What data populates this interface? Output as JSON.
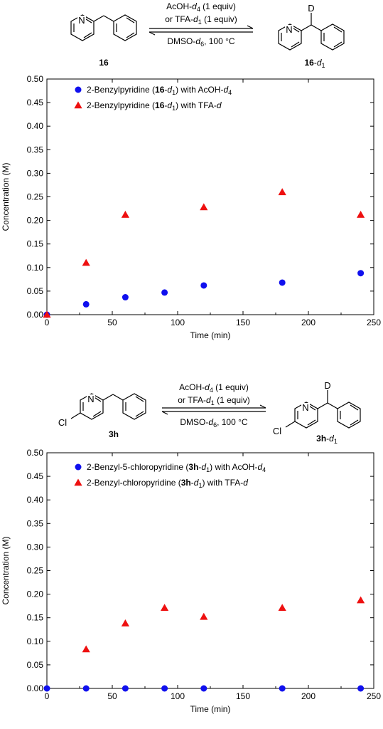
{
  "scheme_top": {
    "start_label": "16",
    "product_label": [
      "16",
      "-",
      "d",
      "1"
    ],
    "product_atom": "D",
    "reagent_line1": [
      "AcOH-",
      "d",
      "4",
      " (1 equiv)"
    ],
    "reagent_line2": [
      "or TFA-",
      "d",
      "1",
      " (1 equiv)"
    ],
    "conditions": [
      "DMSO-",
      "d",
      "6",
      ", 100 °C"
    ],
    "ring_atom": "N"
  },
  "scheme_bottom": {
    "start_label": "3h",
    "product_label": [
      "3h",
      "-",
      "d",
      "1"
    ],
    "product_atom": "D",
    "ring_atom": "N",
    "substituent": "Cl",
    "reagent_line1": [
      "AcOH-",
      "d",
      "4",
      " (1 equiv)"
    ],
    "reagent_line2": [
      "or TFA-",
      "d",
      "1",
      " (1 equiv)"
    ],
    "conditions": [
      "DMSO-",
      "d",
      "6",
      ", 100 °C"
    ]
  },
  "chart_data": [
    {
      "type": "scatter",
      "xlabel": "Time (min)",
      "ylabel": "Concentration (M)",
      "xlim": [
        0,
        250
      ],
      "ylim": [
        0,
        0.5
      ],
      "x_ticks": [
        "0",
        "50",
        "100",
        "150",
        "200",
        "250"
      ],
      "y_ticks": [
        "0.00",
        "0.05",
        "0.10",
        "0.15",
        "0.20",
        "0.25",
        "0.30",
        "0.35",
        "0.40",
        "0.45",
        "0.50"
      ],
      "legend_position": "top-left",
      "grid": false,
      "series": [
        {
          "legend": [
            "2-Benzylpyridine (",
            "16",
            "-",
            "d",
            "1",
            ") with AcOH-",
            "d",
            "4"
          ],
          "marker": "circle",
          "color": "#1010ee",
          "points": [
            [
              0,
              0.0
            ],
            [
              30,
              0.022
            ],
            [
              60,
              0.037
            ],
            [
              90,
              0.047
            ],
            [
              120,
              0.062
            ],
            [
              180,
              0.068
            ],
            [
              240,
              0.088
            ]
          ]
        },
        {
          "legend": [
            "2-Benzylpyridine (",
            "16",
            "-",
            "d",
            "1",
            ") with TFA-",
            "d"
          ],
          "marker": "triangle",
          "color": "#ee1010",
          "points": [
            [
              0,
              0.0
            ],
            [
              30,
              0.11
            ],
            [
              60,
              0.212
            ],
            [
              120,
              0.228
            ],
            [
              180,
              0.26
            ],
            [
              240,
              0.212
            ]
          ]
        }
      ]
    },
    {
      "type": "scatter",
      "xlabel": "Time (min)",
      "ylabel": "Concentration (M)",
      "xlim": [
        0,
        250
      ],
      "ylim": [
        0,
        0.5
      ],
      "x_ticks": [
        "0",
        "50",
        "100",
        "150",
        "200",
        "250"
      ],
      "y_ticks": [
        "0.00",
        "0.05",
        "0.10",
        "0.15",
        "0.20",
        "0.25",
        "0.30",
        "0.35",
        "0.40",
        "0.45",
        "0.50"
      ],
      "legend_position": "top-left",
      "grid": false,
      "series": [
        {
          "legend": [
            "2-Benzyl-5-chloropyridine (",
            "3h",
            "-",
            "d",
            "1",
            ") with AcOH-",
            "d",
            "4"
          ],
          "marker": "circle",
          "color": "#1010ee",
          "points": [
            [
              0,
              0.0
            ],
            [
              30,
              0.0
            ],
            [
              60,
              0.0
            ],
            [
              90,
              0.0
            ],
            [
              120,
              0.0
            ],
            [
              180,
              0.0
            ],
            [
              240,
              0.0
            ]
          ]
        },
        {
          "legend": [
            "2-Benzyl-chloropyridine (",
            "3h",
            "-",
            "d",
            "1",
            ") with TFA-",
            "d"
          ],
          "marker": "triangle",
          "color": "#ee1010",
          "points": [
            [
              30,
              0.083
            ],
            [
              60,
              0.138
            ],
            [
              90,
              0.171
            ],
            [
              120,
              0.152
            ],
            [
              180,
              0.171
            ],
            [
              240,
              0.187
            ]
          ]
        }
      ]
    }
  ]
}
